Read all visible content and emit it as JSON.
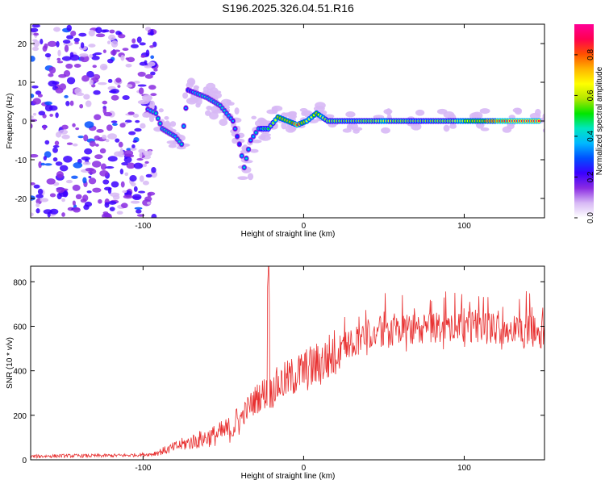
{
  "title": "S196.2025.326.04.51.R16",
  "chart_data": [
    {
      "type": "heatmap",
      "xlabel": "Height of straight line (km)",
      "ylabel": "Frequency (Hz)",
      "xlim": [
        -170,
        150
      ],
      "ylim": [
        -25,
        25
      ],
      "x_ticks": [
        -100,
        0,
        100
      ],
      "x_tick_labels": [
        "-100",
        "0",
        "100"
      ],
      "y_ticks": [
        -20,
        -10,
        0,
        10,
        20
      ],
      "y_tick_labels": [
        "-20",
        "-10",
        "0",
        "10",
        "20"
      ],
      "colorbar": {
        "label": "Normalized spectral amplitude",
        "range": [
          0,
          0.95
        ],
        "ticks": [
          0.0,
          0.2,
          0.4,
          0.6,
          0.8
        ],
        "tick_labels": [
          "0.0",
          "0.2",
          "0.4",
          "0.6",
          "0.8"
        ],
        "colors": [
          "#ffffff",
          "#d7b8f5",
          "#8a2be2",
          "#3b00ff",
          "#0050ff",
          "#00b8ff",
          "#00e6c0",
          "#00e600",
          "#b4e600",
          "#ffff00",
          "#ffb400",
          "#ff5000",
          "#ff0050",
          "#ff0096"
        ]
      },
      "noise_region_x": [
        -170,
        -92
      ],
      "ridge": [
        {
          "x": -97,
          "y": 3,
          "a": 0.35
        },
        {
          "x": -92,
          "y": 2,
          "a": 0.45
        },
        {
          "x": -88,
          "y": -2,
          "a": 0.4
        },
        {
          "x": -84,
          "y": -3,
          "a": 0.45
        },
        {
          "x": -80,
          "y": -4,
          "a": 0.4
        },
        {
          "x": -76,
          "y": -6,
          "a": 0.45
        },
        {
          "x": -72,
          "y": 8,
          "a": 0.3
        },
        {
          "x": -66,
          "y": 7,
          "a": 0.4
        },
        {
          "x": -60,
          "y": 6,
          "a": 0.45
        },
        {
          "x": -56,
          "y": 5,
          "a": 0.4
        },
        {
          "x": -52,
          "y": 4,
          "a": 0.45
        },
        {
          "x": -48,
          "y": 2,
          "a": 0.4
        },
        {
          "x": -44,
          "y": 0,
          "a": 0.35
        },
        {
          "x": -40,
          "y": -6,
          "a": 0.3
        },
        {
          "x": -37,
          "y": -12,
          "a": 0.45
        },
        {
          "x": -33,
          "y": -5,
          "a": 0.35
        },
        {
          "x": -28,
          "y": -2,
          "a": 0.45
        },
        {
          "x": -22,
          "y": -2,
          "a": 0.5
        },
        {
          "x": -16,
          "y": 1,
          "a": 0.7
        },
        {
          "x": -10,
          "y": 0,
          "a": 0.7
        },
        {
          "x": -4,
          "y": -1,
          "a": 0.85
        },
        {
          "x": 2,
          "y": 0,
          "a": 0.65
        },
        {
          "x": 8,
          "y": 2,
          "a": 0.7
        },
        {
          "x": 15,
          "y": 0,
          "a": 0.6
        },
        {
          "x": 30,
          "y": 0,
          "a": 0.55
        },
        {
          "x": 50,
          "y": 0,
          "a": 0.65
        },
        {
          "x": 70,
          "y": 0,
          "a": 0.55
        },
        {
          "x": 90,
          "y": 0,
          "a": 0.6
        },
        {
          "x": 110,
          "y": 0,
          "a": 0.75
        },
        {
          "x": 130,
          "y": 0,
          "a": 0.9
        },
        {
          "x": 148,
          "y": 0,
          "a": 0.9
        }
      ]
    },
    {
      "type": "line",
      "xlabel": "Height of straight line (km)",
      "ylabel": "SNR (10 * v/v)",
      "xlim": [
        -170,
        150
      ],
      "ylim": [
        0,
        870
      ],
      "x_ticks": [
        -100,
        0,
        100
      ],
      "x_tick_labels": [
        "-100",
        "0",
        "100"
      ],
      "y_ticks": [
        0,
        200,
        400,
        600,
        800
      ],
      "y_tick_labels": [
        "0",
        "200",
        "400",
        "600",
        "800"
      ],
      "series": [
        {
          "name": "SNR",
          "color": "#e83030",
          "x": [
            -170,
            -150,
            -130,
            -110,
            -95,
            -85,
            -75,
            -65,
            -55,
            -45,
            -40,
            -35,
            -30,
            -25,
            -22,
            -20,
            -15,
            -10,
            -5,
            0,
            10,
            20,
            30,
            40,
            50,
            60,
            80,
            100,
            120,
            140,
            150
          ],
          "y": [
            15,
            18,
            18,
            20,
            25,
            45,
            70,
            90,
            110,
            140,
            180,
            230,
            270,
            300,
            850,
            320,
            340,
            360,
            380,
            400,
            430,
            480,
            530,
            560,
            570,
            580,
            590,
            600,
            590,
            580,
            570
          ]
        }
      ]
    }
  ]
}
